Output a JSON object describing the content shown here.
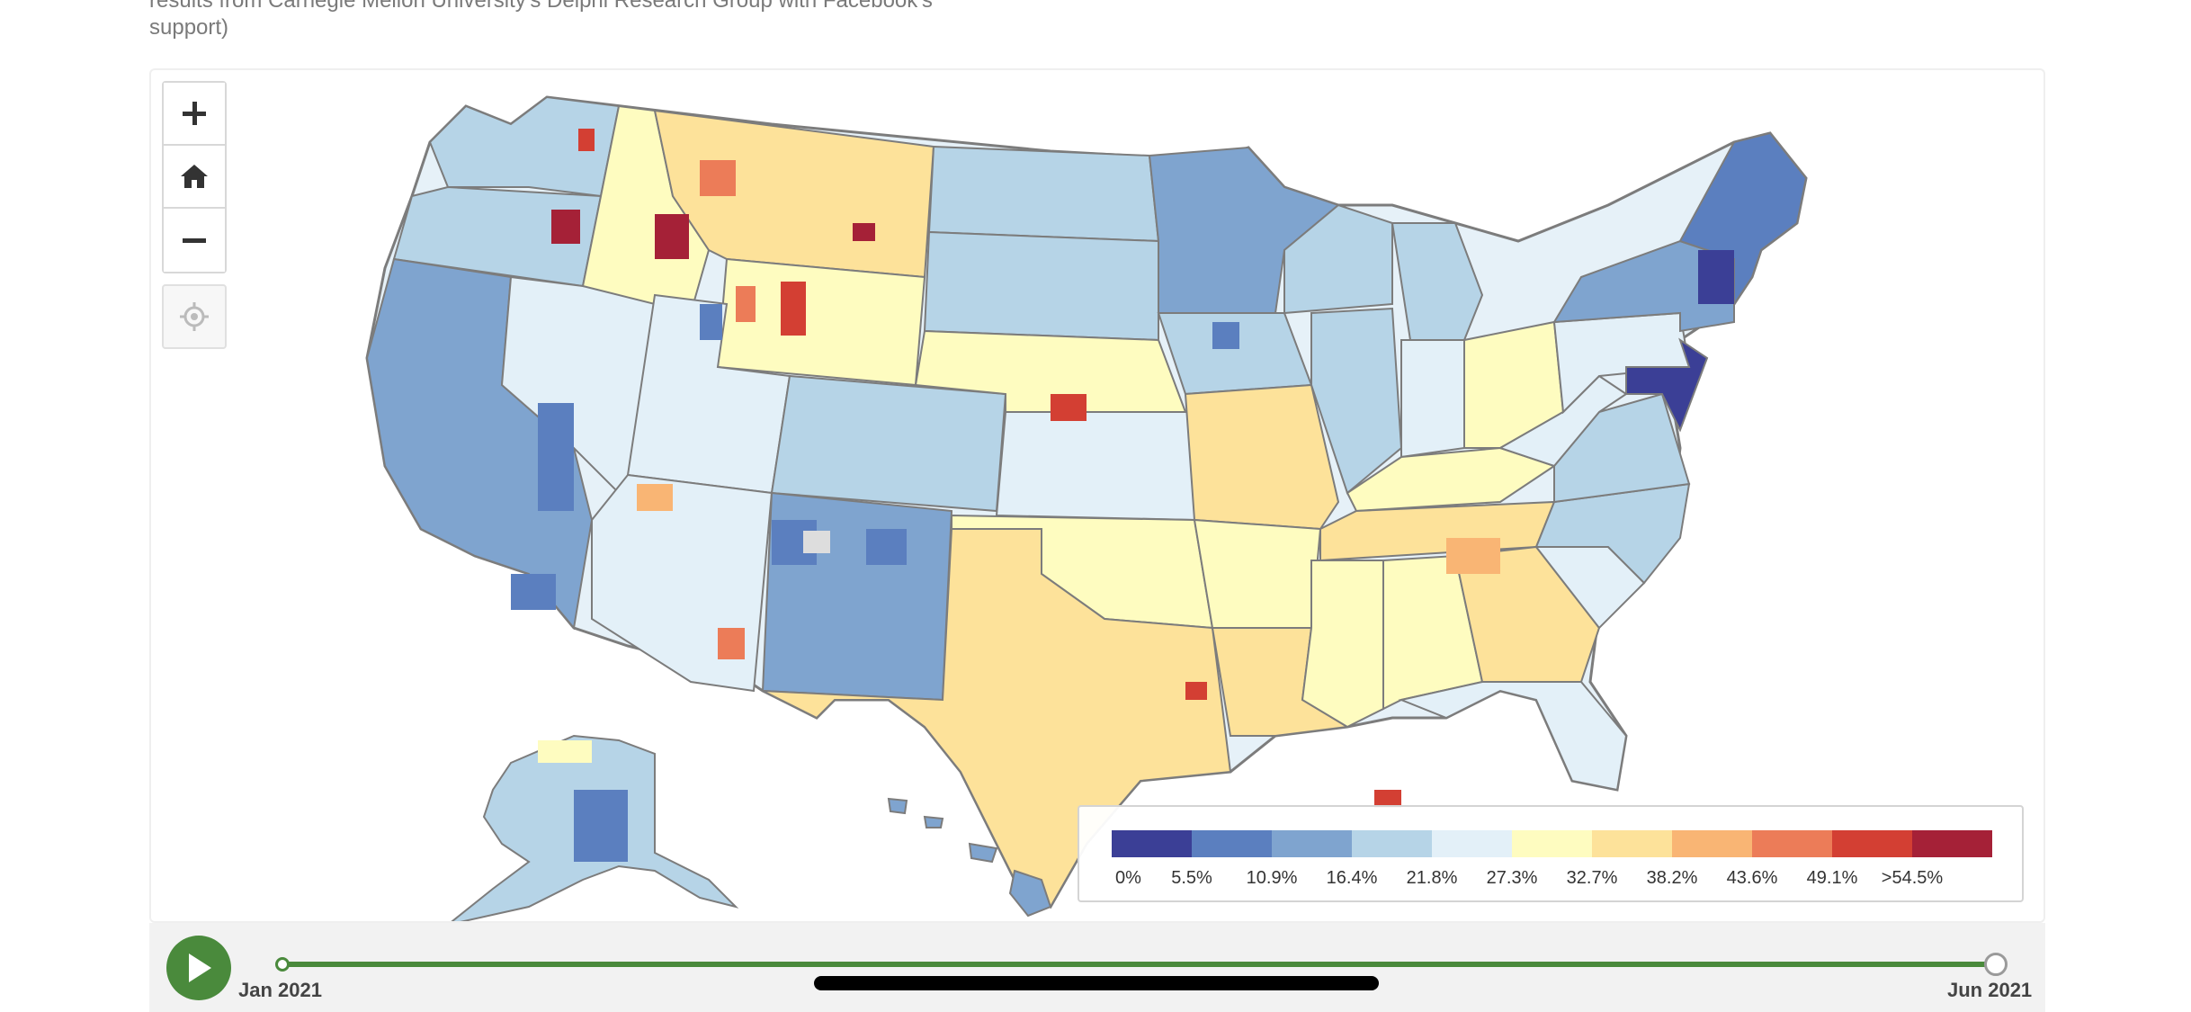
{
  "caption": {
    "line1": "results from Carnegie Mellon University's Delphi Research Group with Facebook's",
    "line2": "support)"
  },
  "map": {
    "type": "choropleth",
    "region": "United States counties",
    "missing_color": "#dddddd"
  },
  "controls": {
    "zoom_in": "plus-icon",
    "home": "home-icon",
    "zoom_out": "minus-icon",
    "locate": "crosshair-icon"
  },
  "legend": {
    "colors": [
      "#3b3f96",
      "#5b7fbf",
      "#7fa4cf",
      "#b6d4e7",
      "#e3f0f8",
      "#fefcc0",
      "#fde29a",
      "#f9b574",
      "#ec7c58",
      "#d33f33",
      "#a52137"
    ],
    "labels": [
      "0%",
      "5.5%",
      "10.9%",
      "16.4%",
      "21.8%",
      "27.3%",
      "32.7%",
      "38.2%",
      "43.6%",
      "49.1%",
      ">54.5%"
    ]
  },
  "timeline": {
    "start_label": "Jan 2021",
    "end_label": "Jun 2021",
    "play_icon": "play-icon",
    "progress": 1.0
  }
}
